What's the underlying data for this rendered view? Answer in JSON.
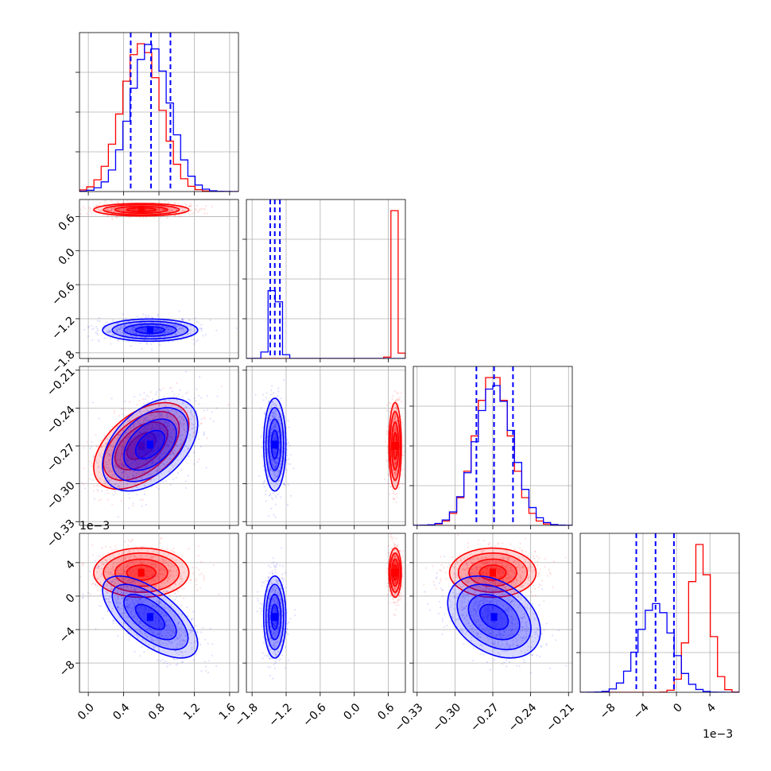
{
  "colors": {
    "red": "#ff0000",
    "blue": "#0000ff",
    "grid": "#b0b0b0"
  },
  "offset_label": "1e−3",
  "chart_data": {
    "type": "corner",
    "grid": true,
    "legend": "none",
    "parameters": [
      {
        "range": [
          -0.1,
          1.7
        ],
        "ticks": [
          0.0,
          0.4,
          0.8,
          1.2,
          1.6
        ],
        "tick_labels": [
          "0.0",
          "0.4",
          "0.8",
          "1.2",
          "1.6"
        ]
      },
      {
        "range": [
          -1.9,
          0.9
        ],
        "ticks": [
          -1.8,
          -1.2,
          -0.6,
          0.0,
          0.6
        ],
        "tick_labels": [
          "−1.8",
          "−1.2",
          "−0.6",
          "0.0",
          "0.6"
        ]
      },
      {
        "range": [
          -0.333,
          -0.207
        ],
        "ticks": [
          -0.33,
          -0.3,
          -0.27,
          -0.24,
          -0.21
        ],
        "tick_labels": [
          "−0.33",
          "−0.30",
          "−0.27",
          "−0.24",
          "−0.21"
        ]
      },
      {
        "range": [
          -11.5,
          7.5
        ],
        "ticks": [
          -8,
          -4,
          0,
          4
        ],
        "tick_labels": [
          "−8",
          "−4",
          "0",
          "4"
        ],
        "scale": "1e-3"
      }
    ],
    "series": [
      {
        "color": "red",
        "mean": [
          0.6,
          0.72,
          -0.27,
          2.8
        ],
        "sd": [
          0.22,
          0.045,
          0.014,
          1.2
        ],
        "corr": [
          [
            0,
            2,
            0.5
          ]
        ]
      },
      {
        "color": "blue",
        "mean": [
          0.7,
          -1.4,
          -0.269,
          -2.5
        ],
        "sd": [
          0.22,
          0.08,
          0.015,
          2.0
        ],
        "corr": [
          [
            0,
            3,
            -0.65
          ],
          [
            0,
            2,
            0.45
          ],
          [
            2,
            3,
            -0.35
          ]
        ]
      }
    ],
    "quantile_lines": [
      [
        0.48,
        0.71,
        0.93
      ],
      [
        -1.48,
        -1.4,
        -1.31
      ],
      [
        -0.283,
        -0.269,
        -0.254
      ],
      [
        -4.8,
        -2.5,
        -0.3
      ]
    ],
    "quantile_color": "blue"
  }
}
